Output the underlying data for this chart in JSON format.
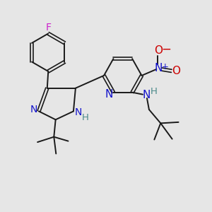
{
  "background_color": "#e6e6e6",
  "atom_colors": {
    "C": "#1a1a1a",
    "N": "#1414cc",
    "O": "#cc0000",
    "F": "#cc22cc",
    "H": "#4a8a8a"
  },
  "figsize": [
    3.0,
    3.0
  ],
  "dpi": 100
}
